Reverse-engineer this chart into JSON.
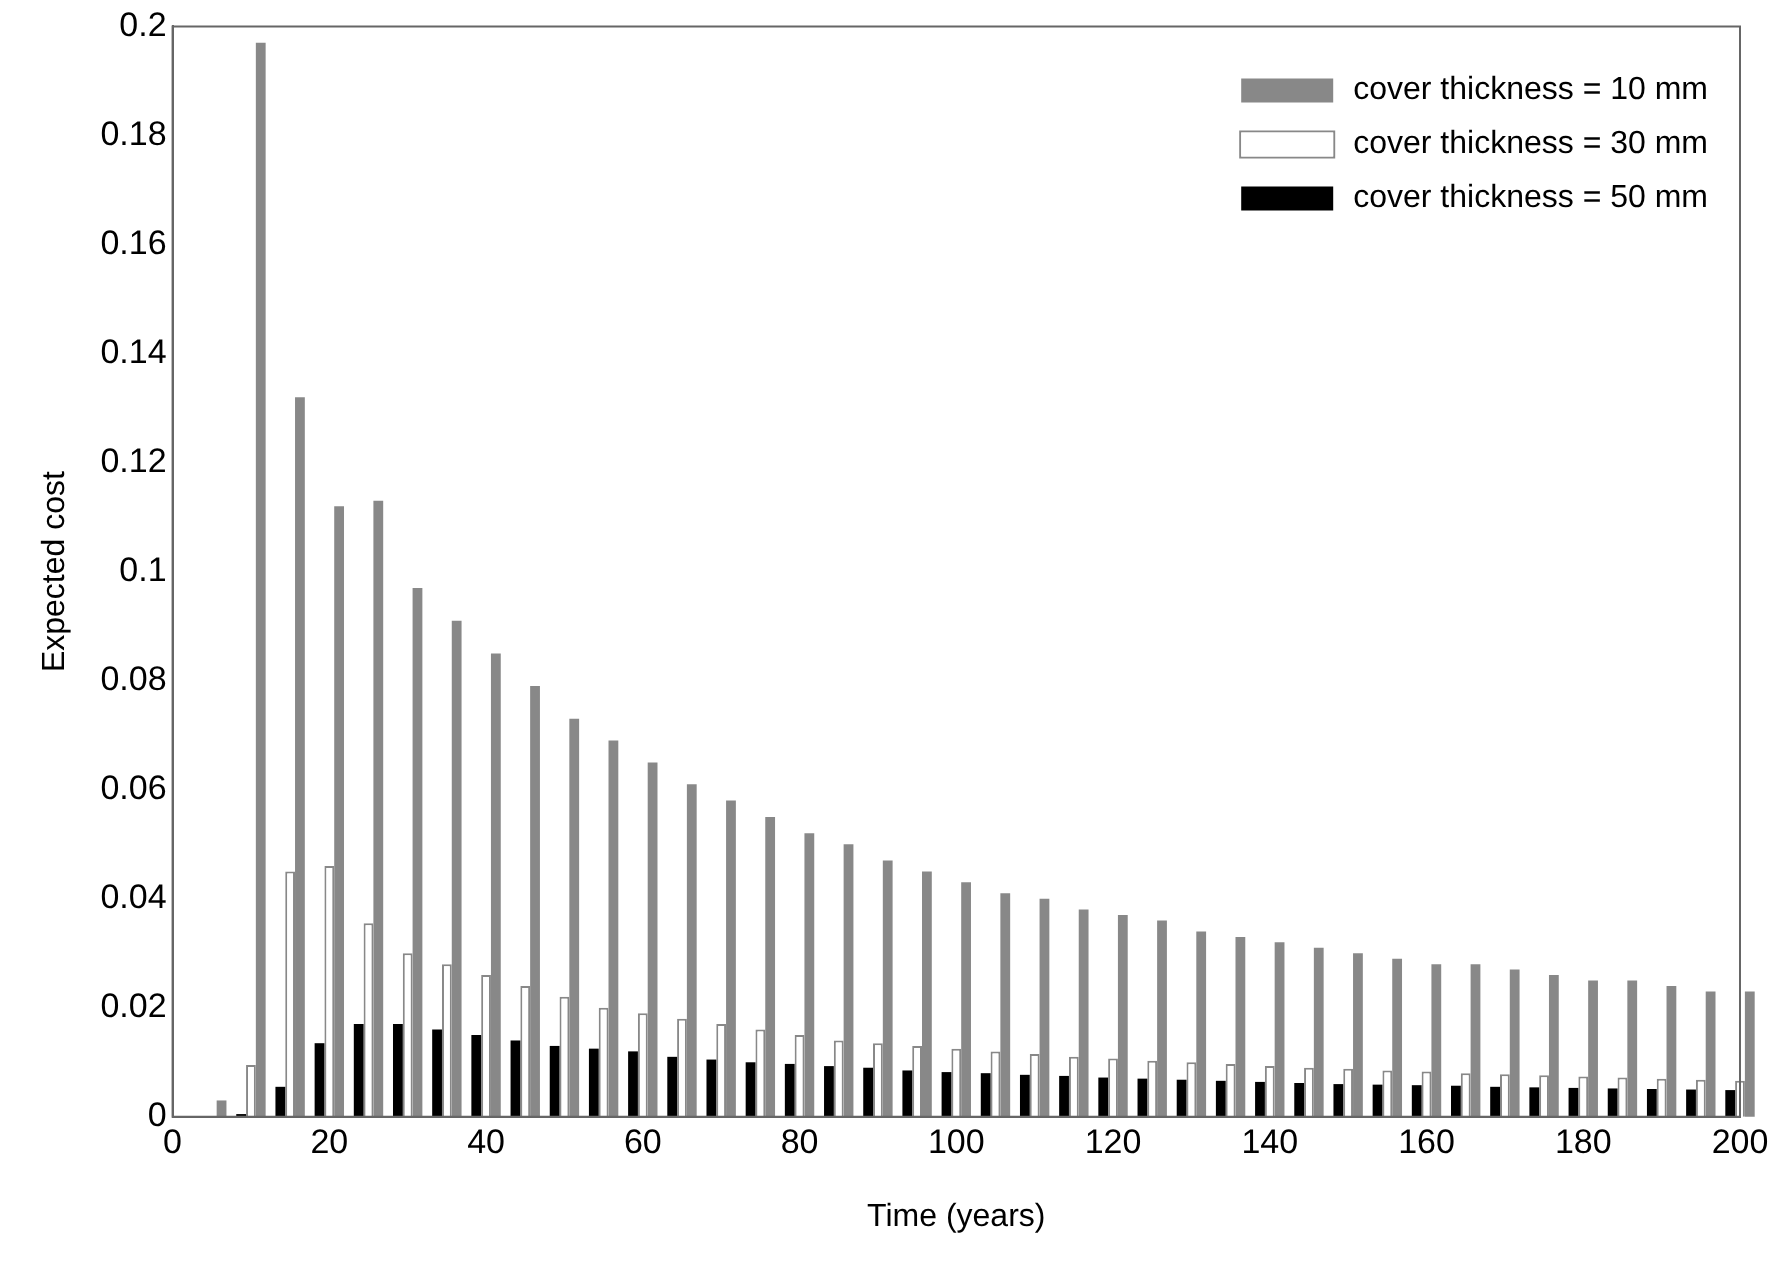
{
  "chart_data": {
    "type": "bar",
    "xlabel": "Time (years)",
    "ylabel": "Expected cost",
    "x": [
      5,
      10,
      15,
      20,
      25,
      30,
      35,
      40,
      45,
      50,
      55,
      60,
      65,
      70,
      75,
      80,
      85,
      90,
      95,
      100,
      105,
      110,
      115,
      120,
      125,
      130,
      135,
      140,
      145,
      150,
      155,
      160,
      165,
      170,
      175,
      180,
      185,
      190,
      195,
      200
    ],
    "series": [
      {
        "name": "cover thickness = 10 mm",
        "color": "#888888",
        "values": [
          0.003,
          0.197,
          0.132,
          0.112,
          0.113,
          0.097,
          0.091,
          0.085,
          0.079,
          0.073,
          0.069,
          0.065,
          0.061,
          0.058,
          0.055,
          0.052,
          0.05,
          0.047,
          0.045,
          0.043,
          0.041,
          0.04,
          0.038,
          0.037,
          0.036,
          0.034,
          0.033,
          0.032,
          0.031,
          0.03,
          0.029,
          0.028,
          0.028,
          0.027,
          0.026,
          0.025,
          0.025,
          0.024,
          0.023,
          0.023
        ]
      },
      {
        "name": "cover thickness = 30 mm",
        "color": "#ffffff",
        "values": [
          null,
          0.0095,
          0.045,
          0.046,
          0.0355,
          0.03,
          0.028,
          0.026,
          0.024,
          0.022,
          0.02,
          0.019,
          0.018,
          0.017,
          0.016,
          0.015,
          0.014,
          0.0135,
          0.013,
          0.0125,
          0.012,
          0.0115,
          0.011,
          0.0107,
          0.0103,
          0.01,
          0.0097,
          0.0093,
          0.009,
          0.0088,
          0.0085,
          0.0083,
          0.008,
          0.0078,
          0.0076,
          0.0074,
          0.0072,
          0.007,
          0.0068,
          0.0066
        ]
      },
      {
        "name": "cover thickness = 50 mm",
        "color": "#000000",
        "values": [
          null,
          0.0005,
          0.0055,
          0.0135,
          0.017,
          0.017,
          0.016,
          0.015,
          0.014,
          0.013,
          0.0125,
          0.012,
          0.011,
          0.0105,
          0.01,
          0.0097,
          0.0093,
          0.009,
          0.0085,
          0.0082,
          0.008,
          0.0077,
          0.0075,
          0.0072,
          0.007,
          0.0068,
          0.0066,
          0.0064,
          0.0062,
          0.006,
          0.0059,
          0.0058,
          0.0057,
          0.0055,
          0.0054,
          0.0053,
          0.0052,
          0.0051,
          0.005,
          0.0049
        ]
      }
    ],
    "xlim": [
      0,
      200
    ],
    "xticks": [
      0,
      20,
      40,
      60,
      80,
      100,
      120,
      140,
      160,
      180,
      200
    ],
    "ylim": [
      0,
      0.2
    ],
    "yticks": [
      0,
      0.02,
      0.04,
      0.06,
      0.08,
      0.1,
      0.12,
      0.14,
      0.16,
      0.18,
      0.2
    ],
    "grid": false,
    "legend": "top right"
  }
}
